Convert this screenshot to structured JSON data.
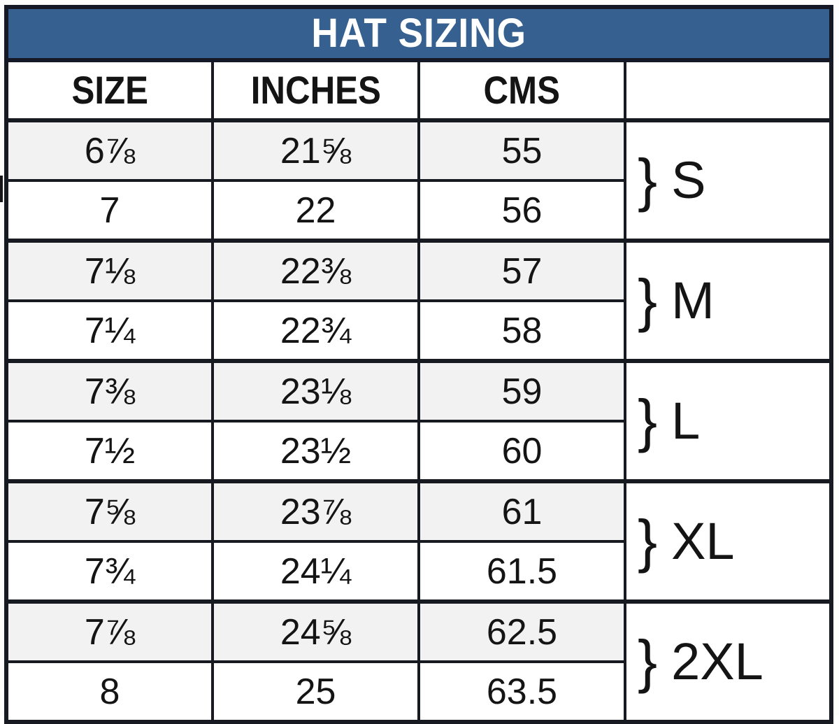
{
  "title": "HAT SIZING",
  "chart_data": {
    "type": "table",
    "title": "HAT SIZING",
    "columns": [
      "SIZE",
      "INCHES",
      "CMS",
      ""
    ],
    "rows": [
      [
        "6⅞",
        "21⅝",
        "55"
      ],
      [
        "7",
        "22",
        "56"
      ],
      [
        "7⅛",
        "22⅜",
        "57"
      ],
      [
        "7¼",
        "22¾",
        "58"
      ],
      [
        "7⅜",
        "23⅛",
        "59"
      ],
      [
        "7½",
        "23½",
        "60"
      ],
      [
        "7⅝",
        "23⅞",
        "61"
      ],
      [
        "7¾",
        "24¼",
        "61.5"
      ],
      [
        "7⅞",
        "24⅝",
        "62.5"
      ],
      [
        "8",
        "25",
        "63.5"
      ]
    ],
    "groups": [
      {
        "brace": "}",
        "label": "S",
        "rows": [
          0,
          1
        ]
      },
      {
        "brace": "}",
        "label": "M",
        "rows": [
          2,
          3
        ]
      },
      {
        "brace": "}",
        "label": "L",
        "rows": [
          4,
          5
        ]
      },
      {
        "brace": "}",
        "label": "XL",
        "rows": [
          6,
          7
        ]
      },
      {
        "brace": "}",
        "label": "2XL",
        "rows": [
          8,
          9
        ]
      }
    ],
    "layout_hints": {
      "shaded_rows": [
        0,
        2,
        4,
        6,
        8
      ],
      "grid": true,
      "group_column_position": "right"
    }
  },
  "colors": {
    "title_bg": "#35608F",
    "title_text": "#FFFFFF",
    "title_border": "#141925",
    "border": "#171A20",
    "shaded_row_bg": "#F2F2F2",
    "row_bg": "#FFFFFF",
    "text": "#141414"
  }
}
